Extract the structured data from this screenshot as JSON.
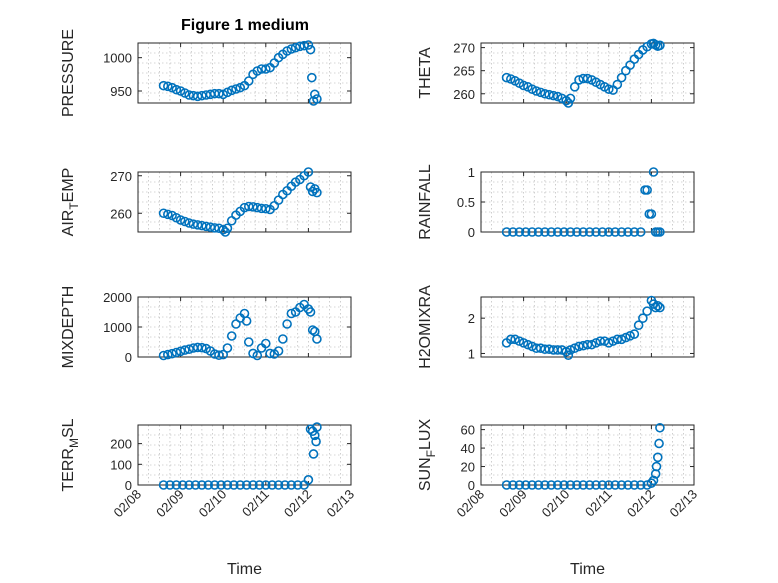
{
  "colors": {
    "marker": "#0072bd",
    "axis": "#262626",
    "grid": "#b0b0b0"
  },
  "figure": {
    "title": "Figure 1 medium"
  },
  "chart_data": [
    {
      "type": "scatter",
      "title": "Figure 1 medium",
      "xlabel": "",
      "ylabel": "PRESSURE",
      "ylabel_sub": "",
      "ylim": [
        932,
        1022
      ],
      "yticks": [
        950,
        1000
      ],
      "grid": true,
      "x": [
        8.6,
        8.7,
        8.8,
        8.9,
        9.0,
        9.1,
        9.2,
        9.3,
        9.4,
        9.5,
        9.6,
        9.7,
        9.8,
        9.9,
        10.0,
        10.1,
        10.2,
        10.3,
        10.4,
        10.5,
        10.6,
        10.7,
        10.8,
        10.9,
        11.0,
        11.1,
        11.2,
        11.3,
        11.4,
        11.5,
        11.6,
        11.7,
        11.8,
        11.9,
        12.0,
        12.05,
        12.08,
        12.12,
        12.15,
        12.2
      ],
      "y": [
        958,
        957,
        955,
        952,
        950,
        947,
        944,
        943,
        942,
        943,
        944,
        945,
        946,
        946,
        945,
        948,
        951,
        953,
        955,
        958,
        965,
        975,
        980,
        983,
        983,
        985,
        992,
        1000,
        1005,
        1010,
        1013,
        1015,
        1017,
        1018,
        1019,
        1012,
        970,
        935,
        945,
        938
      ]
    },
    {
      "type": "scatter",
      "xlabel": "",
      "ylabel": "THETA",
      "ylabel_sub": "",
      "ylim": [
        258,
        271
      ],
      "yticks": [
        260,
        265,
        270
      ],
      "grid": true,
      "x": [
        8.6,
        8.7,
        8.8,
        8.9,
        9.0,
        9.1,
        9.2,
        9.3,
        9.4,
        9.5,
        9.6,
        9.7,
        9.8,
        9.9,
        10.0,
        10.05,
        10.1,
        10.2,
        10.3,
        10.4,
        10.5,
        10.6,
        10.7,
        10.8,
        10.9,
        11.0,
        11.1,
        11.2,
        11.3,
        11.4,
        11.5,
        11.6,
        11.7,
        11.8,
        11.9,
        12.0,
        12.05,
        12.1,
        12.15,
        12.2
      ],
      "y": [
        263.5,
        263.2,
        262.8,
        262.3,
        261.8,
        261.5,
        261.0,
        260.6,
        260.3,
        260.0,
        259.8,
        259.6,
        259.4,
        259.0,
        258.5,
        258.0,
        259.0,
        261.5,
        263.0,
        263.3,
        263.3,
        263.0,
        262.5,
        262.0,
        261.5,
        261.0,
        260.8,
        262.0,
        263.5,
        265.0,
        266.2,
        267.5,
        268.5,
        269.5,
        270.2,
        270.8,
        270.9,
        270.6,
        270.3,
        270.5
      ]
    },
    {
      "type": "scatter",
      "xlabel": "",
      "ylabel": "AIR",
      "ylabel_sub": "T",
      "ylabel_suffix": "EMP",
      "ylim": [
        255,
        271
      ],
      "yticks": [
        260,
        270
      ],
      "grid": true,
      "x": [
        8.6,
        8.7,
        8.8,
        8.9,
        9.0,
        9.1,
        9.2,
        9.3,
        9.4,
        9.5,
        9.6,
        9.7,
        9.8,
        9.9,
        10.0,
        10.05,
        10.1,
        10.2,
        10.3,
        10.4,
        10.5,
        10.6,
        10.7,
        10.8,
        10.9,
        11.0,
        11.1,
        11.2,
        11.3,
        11.4,
        11.5,
        11.6,
        11.7,
        11.8,
        11.9,
        12.0,
        12.05,
        12.1,
        12.15,
        12.2
      ],
      "y": [
        260.0,
        259.7,
        259.4,
        258.8,
        258.2,
        257.8,
        257.4,
        257.1,
        256.9,
        256.7,
        256.5,
        256.3,
        256.1,
        256.0,
        255.6,
        255.0,
        256.0,
        258.0,
        259.5,
        260.5,
        261.5,
        261.8,
        261.7,
        261.5,
        261.3,
        261.2,
        261.0,
        262.0,
        263.5,
        265.0,
        266.0,
        267.2,
        268.3,
        269.0,
        270.0,
        271.0,
        267.0,
        265.8,
        266.5,
        265.5
      ]
    },
    {
      "type": "scatter",
      "xlabel": "",
      "ylabel": "RAINFALL",
      "ylabel_sub": "",
      "ylim": [
        0,
        1
      ],
      "yticks": [
        0,
        0.5,
        1
      ],
      "ytick_labels": [
        "0",
        "0.5",
        "1"
      ],
      "grid": true,
      "x": [
        8.6,
        8.75,
        8.9,
        9.05,
        9.2,
        9.35,
        9.5,
        9.65,
        9.8,
        9.95,
        10.1,
        10.25,
        10.4,
        10.55,
        10.7,
        10.85,
        11.0,
        11.15,
        11.3,
        11.45,
        11.6,
        11.75,
        11.85,
        11.9,
        11.95,
        12.0,
        12.05,
        12.1,
        12.15,
        12.2
      ],
      "y": [
        0,
        0,
        0,
        0,
        0,
        0,
        0,
        0,
        0,
        0,
        0,
        0,
        0,
        0,
        0,
        0,
        0,
        0,
        0,
        0,
        0,
        0,
        0.7,
        0.7,
        0.3,
        0.3,
        1.0,
        0,
        0,
        0
      ]
    },
    {
      "type": "scatter",
      "xlabel": "",
      "ylabel": "MIXDEPTH",
      "ylabel_sub": "",
      "ylim": [
        0,
        2000
      ],
      "yticks": [
        0,
        1000,
        2000
      ],
      "grid": true,
      "x": [
        8.6,
        8.7,
        8.8,
        8.9,
        9.0,
        9.1,
        9.2,
        9.3,
        9.4,
        9.5,
        9.6,
        9.7,
        9.8,
        9.9,
        10.0,
        10.1,
        10.2,
        10.3,
        10.4,
        10.5,
        10.55,
        10.6,
        10.7,
        10.8,
        10.9,
        11.0,
        11.1,
        11.2,
        11.3,
        11.4,
        11.5,
        11.6,
        11.7,
        11.8,
        11.9,
        12.0,
        12.05,
        12.1,
        12.15,
        12.2
      ],
      "y": [
        50,
        80,
        110,
        150,
        190,
        230,
        260,
        300,
        320,
        310,
        280,
        200,
        100,
        60,
        80,
        300,
        700,
        1100,
        1300,
        1450,
        1200,
        500,
        120,
        50,
        300,
        450,
        120,
        100,
        200,
        600,
        1100,
        1450,
        1500,
        1650,
        1750,
        1600,
        1500,
        900,
        850,
        600
      ]
    },
    {
      "type": "scatter",
      "xlabel": "",
      "ylabel": "H2OMIXRA",
      "ylabel_sub": "",
      "ylim": [
        0.9,
        2.6
      ],
      "yticks": [
        1,
        2
      ],
      "grid": true,
      "x": [
        8.6,
        8.7,
        8.8,
        8.9,
        9.0,
        9.1,
        9.2,
        9.3,
        9.4,
        9.5,
        9.6,
        9.7,
        9.8,
        9.9,
        10.0,
        10.05,
        10.1,
        10.2,
        10.3,
        10.4,
        10.5,
        10.6,
        10.7,
        10.8,
        10.9,
        11.0,
        11.1,
        11.2,
        11.3,
        11.4,
        11.5,
        11.6,
        11.7,
        11.8,
        11.9,
        12.0,
        12.05,
        12.1,
        12.15,
        12.2
      ],
      "y": [
        1.3,
        1.4,
        1.4,
        1.35,
        1.3,
        1.25,
        1.2,
        1.15,
        1.15,
        1.12,
        1.12,
        1.1,
        1.1,
        1.1,
        1.05,
        0.95,
        1.1,
        1.15,
        1.2,
        1.22,
        1.25,
        1.25,
        1.3,
        1.35,
        1.35,
        1.3,
        1.35,
        1.4,
        1.4,
        1.45,
        1.5,
        1.55,
        1.8,
        2.0,
        2.2,
        2.5,
        2.4,
        2.3,
        2.35,
        2.3
      ]
    },
    {
      "type": "scatter",
      "xlabel": "Time",
      "ylabel": "TERR",
      "ylabel_sub": "M",
      "ylabel_suffix": "SL",
      "ylim": [
        0,
        290
      ],
      "yticks": [
        0,
        100,
        200
      ],
      "grid": true,
      "xticks": [
        8,
        9,
        10,
        11,
        12,
        13
      ],
      "xtick_labels": [
        "02/08",
        "02/09",
        "02/10",
        "02/11",
        "02/12",
        "02/13"
      ],
      "x": [
        8.6,
        8.75,
        8.9,
        9.05,
        9.2,
        9.35,
        9.5,
        9.65,
        9.8,
        9.95,
        10.1,
        10.25,
        10.4,
        10.55,
        10.7,
        10.85,
        11.0,
        11.15,
        11.3,
        11.45,
        11.6,
        11.75,
        11.9,
        12.0,
        12.05,
        12.1,
        12.12,
        12.15,
        12.18,
        12.2
      ],
      "y": [
        0,
        0,
        0,
        0,
        0,
        0,
        0,
        0,
        0,
        0,
        0,
        0,
        0,
        0,
        0,
        0,
        0,
        0,
        0,
        0,
        0,
        0,
        0,
        25,
        270,
        260,
        150,
        240,
        210,
        280
      ]
    },
    {
      "type": "scatter",
      "xlabel": "Time",
      "ylabel": "SUN",
      "ylabel_sub": "F",
      "ylabel_suffix": "LUX",
      "ylim": [
        0,
        65
      ],
      "yticks": [
        0,
        20,
        40,
        60
      ],
      "grid": true,
      "xticks": [
        8,
        9,
        10,
        11,
        12,
        13
      ],
      "xtick_labels": [
        "02/08",
        "02/09",
        "02/10",
        "02/11",
        "02/12",
        "02/13"
      ],
      "x": [
        8.6,
        8.75,
        8.9,
        9.05,
        9.2,
        9.35,
        9.5,
        9.65,
        9.8,
        9.95,
        10.1,
        10.25,
        10.4,
        10.55,
        10.7,
        10.85,
        11.0,
        11.15,
        11.3,
        11.45,
        11.6,
        11.75,
        11.9,
        12.0,
        12.05,
        12.1,
        12.12,
        12.15,
        12.18,
        12.2
      ],
      "y": [
        0,
        0,
        0,
        0,
        0,
        0,
        0,
        0,
        0,
        0,
        0,
        0,
        0,
        0,
        0,
        0,
        0,
        0,
        0,
        0,
        0,
        0,
        0,
        2,
        5,
        12,
        20,
        30,
        45,
        62
      ]
    }
  ]
}
